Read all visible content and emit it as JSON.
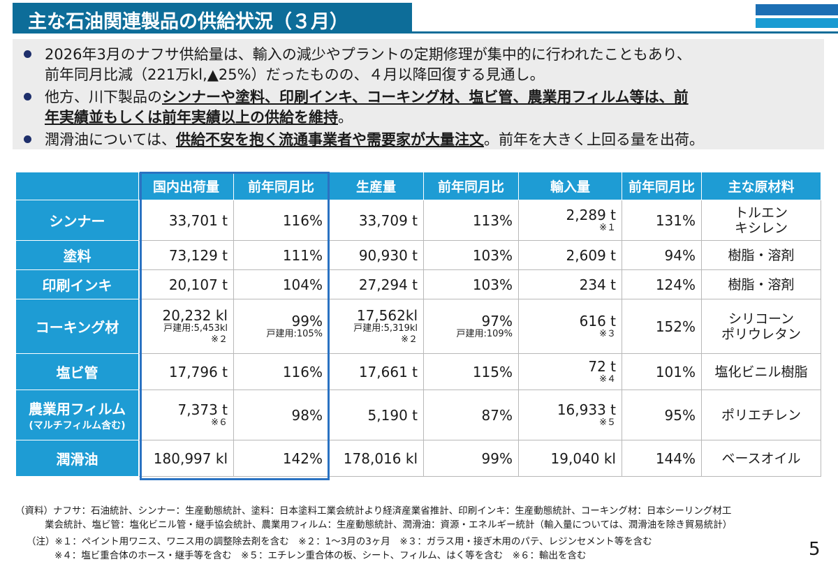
{
  "title": "主な石油関連製品の供給状況（３月）",
  "bullets": [
    {
      "lines": [
        [
          {
            "t": "2026年3月のナフサ供給量は、輸入の減少やプラントの定期修理が集中的に行われたこともあり、",
            "b": false
          }
        ],
        [
          {
            "t": "前年同月比減（221万kl,▲25%）だったものの、４月以降回復する見通し。",
            "b": false
          }
        ]
      ]
    },
    {
      "lines": [
        [
          {
            "t": "他方、川下製品の",
            "b": false
          },
          {
            "t": "シンナーや塗料、印刷インキ、コーキング材、塩ビ管、農業用フィルム等は、前",
            "b": true
          }
        ],
        [
          {
            "t": "年実績並もしくは前年実績以上の供給を維持",
            "b": true
          },
          {
            "t": "。",
            "b": false
          }
        ]
      ]
    },
    {
      "lines": [
        [
          {
            "t": "潤滑油については、",
            "b": false
          },
          {
            "t": "供給不安を抱く流通事業者や需要家が大量注文",
            "b": true
          },
          {
            "t": "。前年を大きく上回る量を出荷。",
            "b": false
          }
        ]
      ]
    }
  ],
  "table": {
    "headers": [
      "",
      "国内出荷量",
      "前年同月比",
      "生産量",
      "前年同月比",
      "輸入量",
      "前年同月比",
      "主な原材料"
    ],
    "rows": [
      {
        "name": "シンナー",
        "name_sub": "",
        "ship": "33,701 t",
        "ship_sub": "",
        "ship_note": "",
        "ship_yoy": "116%",
        "ship_yoy_sub": "",
        "prod": "33,709 t",
        "prod_sub": "",
        "prod_note": "",
        "prod_yoy": "113%",
        "prod_yoy_sub": "",
        "imp": "2,289 t",
        "imp_note": "※１",
        "imp_yoy": "131%",
        "mat": [
          "トルエン",
          "キシレン"
        ]
      },
      {
        "name": "塗料",
        "name_sub": "",
        "ship": "73,129 t",
        "ship_sub": "",
        "ship_note": "",
        "ship_yoy": "111%",
        "ship_yoy_sub": "",
        "prod": "90,930 t",
        "prod_sub": "",
        "prod_note": "",
        "prod_yoy": "103%",
        "prod_yoy_sub": "",
        "imp": "2,609 t",
        "imp_note": "",
        "imp_yoy": "94%",
        "mat": [
          "樹脂・溶剤"
        ]
      },
      {
        "name": "印刷インキ",
        "name_sub": "",
        "ship": "20,107 t",
        "ship_sub": "",
        "ship_note": "",
        "ship_yoy": "104%",
        "ship_yoy_sub": "",
        "prod": "27,294 t",
        "prod_sub": "",
        "prod_note": "",
        "prod_yoy": "103%",
        "prod_yoy_sub": "",
        "imp": "234 t",
        "imp_note": "",
        "imp_yoy": "124%",
        "mat": [
          "樹脂・溶剤"
        ]
      },
      {
        "name": "コーキング材",
        "name_sub": "",
        "ship": "20,232 kl",
        "ship_sub": "戸建用:5,453kl",
        "ship_note": "※２",
        "ship_yoy": "99%",
        "ship_yoy_sub": "戸建用:105%",
        "prod": "17,562kl",
        "prod_sub": "戸建用:5,319kl",
        "prod_note": "※２",
        "prod_yoy": "97%",
        "prod_yoy_sub": "戸建用:109%",
        "imp": "616 t",
        "imp_note": "※３",
        "imp_yoy": "152%",
        "mat": [
          "シリコーン",
          "ポリウレタン"
        ]
      },
      {
        "name": "塩ビ管",
        "name_sub": "",
        "ship": "17,796 t",
        "ship_sub": "",
        "ship_note": "",
        "ship_yoy": "116%",
        "ship_yoy_sub": "",
        "prod": "17,661 t",
        "prod_sub": "",
        "prod_note": "",
        "prod_yoy": "115%",
        "prod_yoy_sub": "",
        "imp": "72 t",
        "imp_note": "※４",
        "imp_yoy": "101%",
        "mat": [
          "塩化ビニル樹脂"
        ]
      },
      {
        "name": "農業用フィルム",
        "name_sub": "(マルチフィルム含む)",
        "ship": "7,373 t",
        "ship_sub": "",
        "ship_note": "※６",
        "ship_yoy": "98%",
        "ship_yoy_sub": "",
        "prod": "5,190 t",
        "prod_sub": "",
        "prod_note": "",
        "prod_yoy": "87%",
        "prod_yoy_sub": "",
        "imp": "16,933 t",
        "imp_note": "※５",
        "imp_yoy": "95%",
        "mat": [
          "ポリエチレン"
        ]
      },
      {
        "name": "潤滑油",
        "name_sub": "",
        "ship": "180,997 kl",
        "ship_sub": "",
        "ship_note": "",
        "ship_yoy": "142%",
        "ship_yoy_sub": "",
        "prod": "178,016 kl",
        "prod_sub": "",
        "prod_note": "",
        "prod_yoy": "99%",
        "prod_yoy_sub": "",
        "imp": "19,040 kl",
        "imp_note": "",
        "imp_yoy": "144%",
        "mat": [
          "ベースオイル"
        ]
      }
    ]
  },
  "footnotes": [
    "（資料）ナフサ：石油統計、シンナー：生産動態統計、塗料：日本塗料工業会統計より経済産業省推計、印刷インキ：生産動態統計、コーキング材：日本シーリング材工",
    "業会統計、塩ビ管：塩化ビニル管・継手協会統計、農業用フィルム：生産動態統計、潤滑油：資源・エネルギー統計（輸入量については、潤滑油を除き貿易統計）",
    "（注）※１：ペイント用ワニス、ワニス用の調整除去剤を含む　※２：1～3月の3ヶ月　※３：ガラス用・接ぎ木用のパテ、レジンセメント等を含む",
    "※４：塩ビ重合体のホース・継手等を含む　※５：エチレン重合体の板、シート、フィルム、はく等を含む　※６：輸出を含む"
  ],
  "page_number": "5"
}
